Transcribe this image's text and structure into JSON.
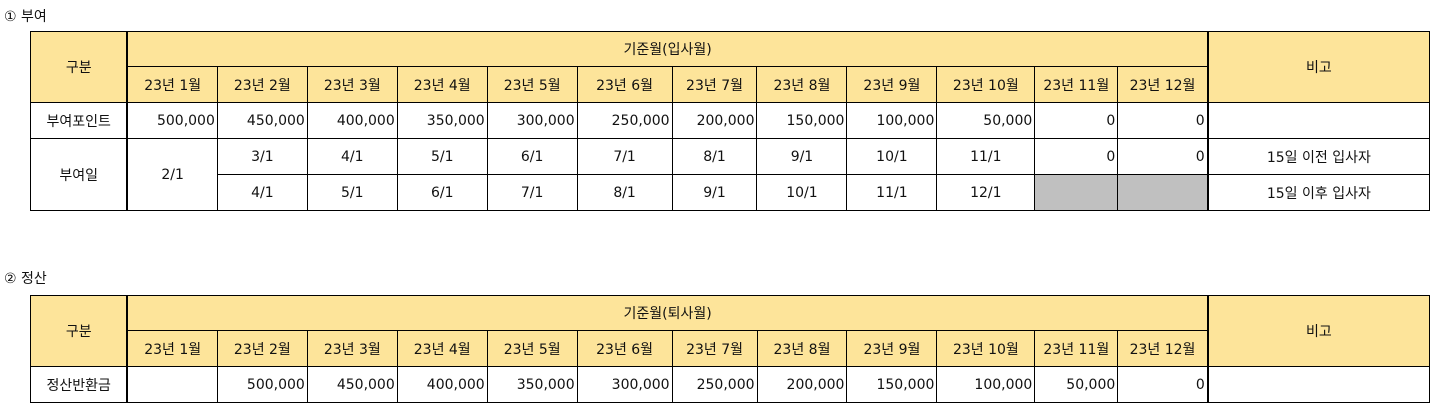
{
  "section1": {
    "title": "① 부여",
    "gubun": "구분",
    "base_month_header": "기준월(입사월)",
    "remark_header": "비고",
    "months": [
      "23년 1월",
      "23년 2월",
      "23년 3월",
      "23년 4월",
      "23년 5월",
      "23년 6월",
      "23년 7월",
      "23년 8월",
      "23년 9월",
      "23년 10월",
      "23년 11월",
      "23년 12월"
    ],
    "points_label": "부여포인트",
    "points": [
      "500,000",
      "450,000",
      "400,000",
      "350,000",
      "300,000",
      "250,000",
      "200,000",
      "150,000",
      "100,000",
      "50,000",
      "0",
      "0"
    ],
    "grant_date_label": "부여일",
    "jan_date": "2/1",
    "before15": [
      "3/1",
      "4/1",
      "5/1",
      "6/1",
      "7/1",
      "8/1",
      "9/1",
      "10/1",
      "11/1",
      "0",
      "0"
    ],
    "after15": [
      "4/1",
      "5/1",
      "6/1",
      "7/1",
      "8/1",
      "9/1",
      "10/1",
      "11/1",
      "12/1"
    ],
    "remark_before": "15일 이전 입사자",
    "remark_after": "15일 이후 입사자"
  },
  "section2": {
    "title": "② 정산",
    "gubun": "구분",
    "base_month_header": "기준월(퇴사월)",
    "remark_header": "비고",
    "months": [
      "23년 1월",
      "23년 2월",
      "23년 3월",
      "23년 4월",
      "23년 5월",
      "23년 6월",
      "23년 7월",
      "23년 8월",
      "23년 9월",
      "23년 10월",
      "23년 11월",
      "23년 12월"
    ],
    "refund_label": "정산반환금",
    "refunds": [
      "",
      "500,000",
      "450,000",
      "400,000",
      "350,000",
      "300,000",
      "250,000",
      "200,000",
      "150,000",
      "100,000",
      "50,000",
      "0"
    ]
  }
}
